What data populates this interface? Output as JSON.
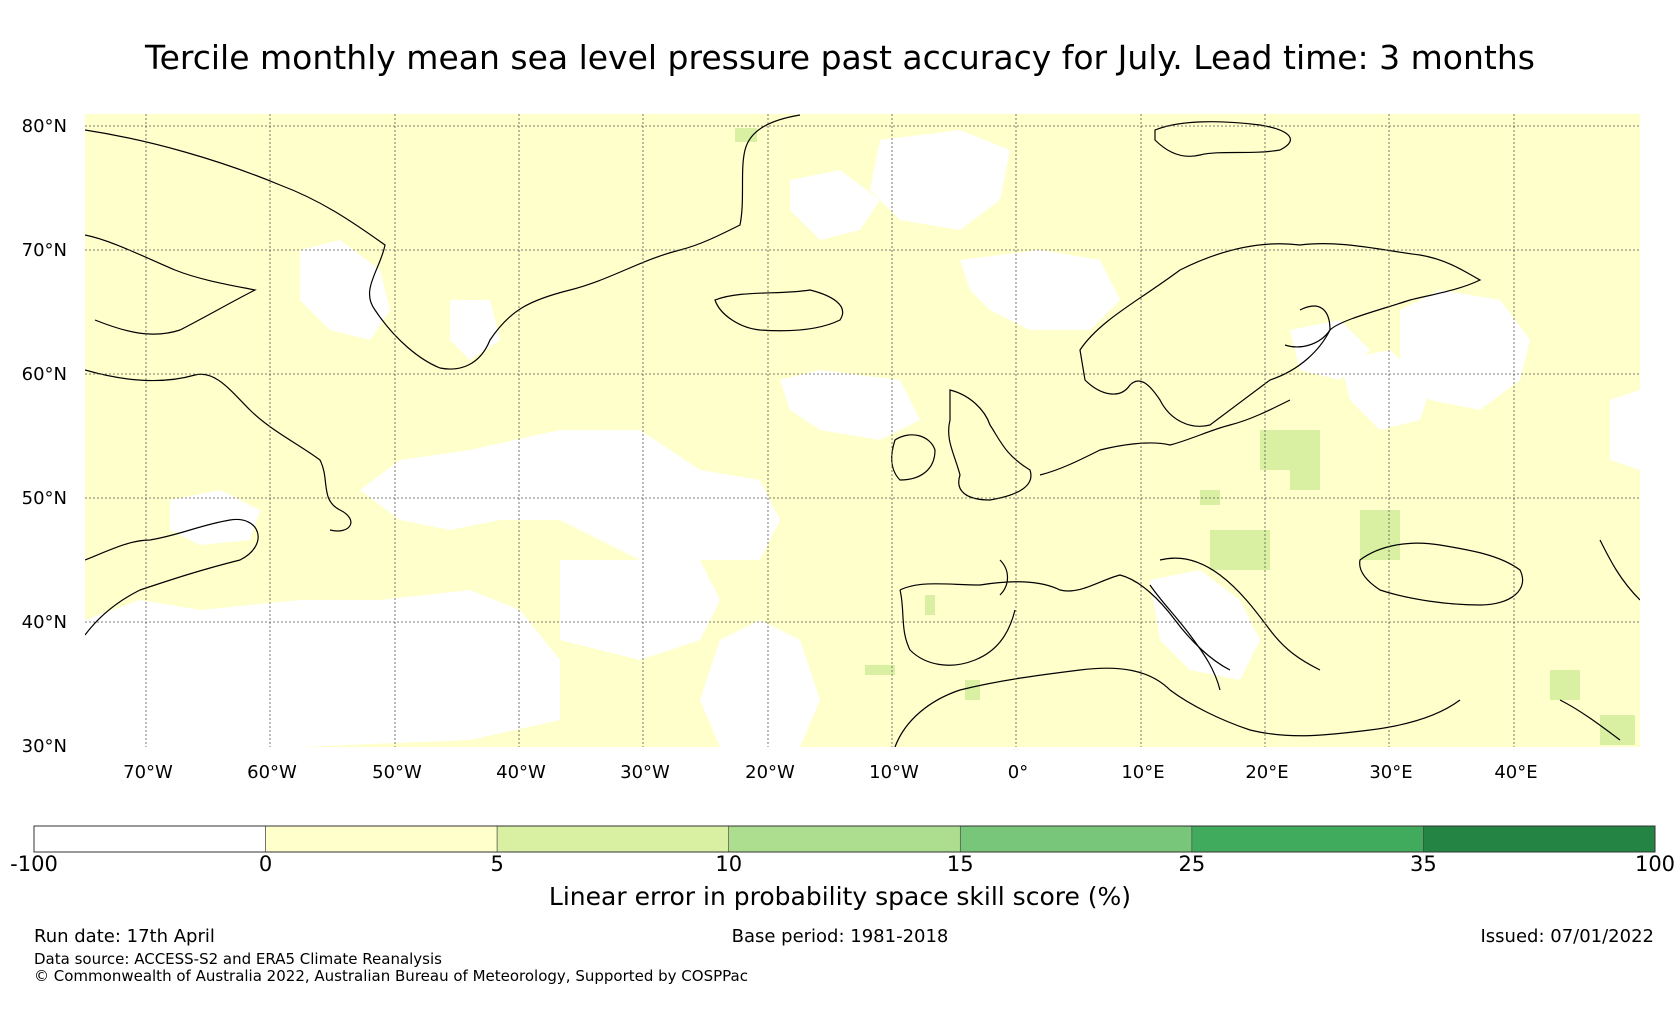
{
  "title": "Tercile monthly mean sea level pressure past accuracy for July. Lead time: 3 months",
  "map": {
    "lat_labels": [
      "80°N",
      "70°N",
      "60°N",
      "50°N",
      "40°N",
      "30°N"
    ],
    "lon_labels": [
      "70°W",
      "60°W",
      "50°W",
      "40°W",
      "30°W",
      "20°W",
      "10°W",
      "0°",
      "10°E",
      "20°E",
      "30°E",
      "40°E"
    ],
    "lon_range": [
      -75,
      50
    ],
    "lat_range": [
      30,
      81
    ],
    "base_fill_color": "#ffffcc",
    "gridlines": true
  },
  "colorbar": {
    "ticks": [
      "-100",
      "0",
      "5",
      "10",
      "15",
      "25",
      "35",
      "100"
    ],
    "colors": [
      "#ffffff",
      "#ffffcc",
      "#d9f0a3",
      "#addd8e",
      "#78c679",
      "#41ab5d",
      "#238443"
    ],
    "label": "Linear error in probability space skill score (%)"
  },
  "footer": {
    "run_date": "Run date: 17th April",
    "base_period": "Base period: 1981-2018",
    "issued": "Issued: 07/01/2022",
    "data_source": "Data source: ACCESS-S2 and ERA5 Climate Reanalysis",
    "copyright": "© Commonwealth of Australia 2022, Australian Bureau of Meteorology, Supported by COSPPac"
  }
}
